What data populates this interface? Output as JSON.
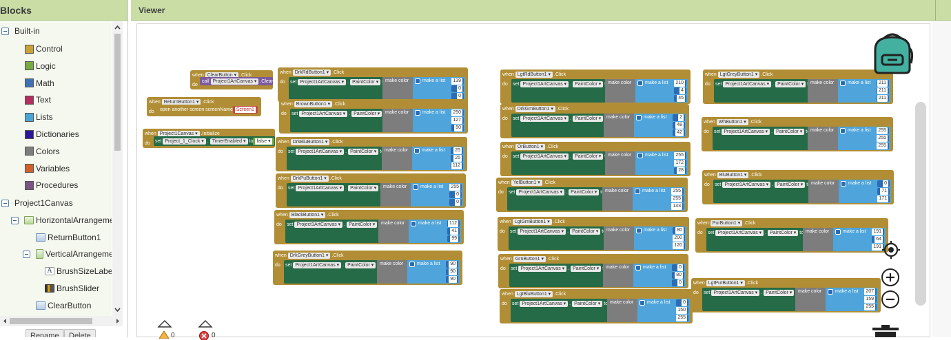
{
  "blocks_panel": {
    "title": "Blocks",
    "builtin": {
      "label": "Built-in",
      "items": [
        {
          "label": "Control",
          "color": "#c9a23a"
        },
        {
          "label": "Logic",
          "color": "#77ab41"
        },
        {
          "label": "Math",
          "color": "#3f71b5"
        },
        {
          "label": "Text",
          "color": "#b32d5e"
        },
        {
          "label": "Lists",
          "color": "#49a6d4"
        },
        {
          "label": "Dictionaries",
          "color": "#2d1799"
        },
        {
          "label": "Colors",
          "color": "#7d7d7d"
        },
        {
          "label": "Variables",
          "color": "#d05f2d"
        },
        {
          "label": "Procedures",
          "color": "#7c5385"
        }
      ]
    },
    "components": {
      "root": "Project1Canvas",
      "horizontal": "HorizontalArrangemen",
      "return_button": "ReturnButton1",
      "vertical": "VerticalArrangemer",
      "brush_size_label": "BrushSizeLabel",
      "brush_slider": "BrushSlider",
      "clear_button": "ClearButton"
    },
    "rename_label": "Rename",
    "delete_label": "Delete"
  },
  "viewer": {
    "title": "Viewer",
    "warnings_count": "0",
    "errors_count": "0"
  },
  "blocks": {
    "when": "when",
    "do": "do",
    "click": "Click",
    "set": "set",
    "to": "to",
    "call": "call",
    "make_color": "make color",
    "make_a_list": "make a list",
    "canvas": "Project1ArtCanvas",
    "paint_color": "PaintColor",
    "clear_btn": {
      "name": "ClearButton",
      "call_target": "Project1ArtCanvas",
      "method": "Clear"
    },
    "return_btn": {
      "name": "ReturnButton1",
      "action": "open another screen  screenName",
      "screen": "Screen1"
    },
    "init": {
      "name": "Project1Canvas",
      "event": "Initialize",
      "target": "Project_1_Clock",
      "prop": "TimerEnabled",
      "value": "false"
    },
    "color_buttons": [
      {
        "name": "DrkRdButton1",
        "rgb": [
          "139",
          "0",
          "0"
        ]
      },
      {
        "name": "BrownButton1",
        "rgb": [
          "250",
          "127",
          "50"
        ]
      },
      {
        "name": "DrkBluButton1",
        "rgb": [
          "25",
          "25",
          "112"
        ]
      },
      {
        "name": "DrkPuButton1",
        "rgb": [
          "255",
          "0",
          "0"
        ]
      },
      {
        "name": "BlackButton1",
        "rgb": [
          "112",
          "41",
          "99"
        ]
      },
      {
        "name": "DrkGreyButton1",
        "rgb": [
          "90",
          "90",
          "90"
        ]
      },
      {
        "name": "LgtRdButton1",
        "rgb": [
          "210",
          "4",
          "45"
        ]
      },
      {
        "name": "DrkGrnButton1",
        "rgb": [
          "2",
          "48",
          "42"
        ]
      },
      {
        "name": "OrButton1",
        "rgb": [
          "255",
          "172",
          "28"
        ]
      },
      {
        "name": "YelButton1",
        "rgb": [
          "255",
          "255",
          "143"
        ]
      },
      {
        "name": "LgtGrnButton1",
        "rgb": [
          "80",
          "200",
          "120"
        ]
      },
      {
        "name": "GrnButton1",
        "rgb": [
          "0",
          "80",
          "0"
        ]
      },
      {
        "name": "LgtBluButton1",
        "rgb": [
          "0",
          "150",
          "255"
        ]
      },
      {
        "name": "LgtGreyButton1",
        "rgb": [
          "211",
          "211",
          "211"
        ]
      },
      {
        "name": "WhButton1",
        "rgb": [
          "255",
          "255",
          "255"
        ]
      },
      {
        "name": "BluButton1",
        "rgb": [
          "0",
          "71",
          "171"
        ]
      },
      {
        "name": "PurButton1",
        "rgb": [
          "191",
          "64",
          "191"
        ]
      },
      {
        "name": "LgtPurButton1",
        "rgb": [
          "207",
          "159",
          "255"
        ]
      }
    ]
  }
}
